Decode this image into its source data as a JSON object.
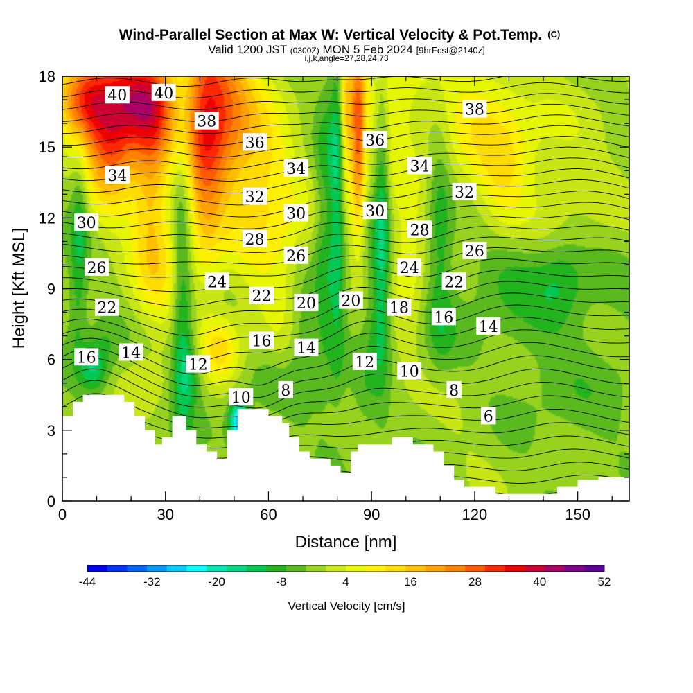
{
  "chart_data": {
    "type": "heatmap",
    "title": "Wind-Parallel Section at Max W: Vertical Velocity & Pot.Temp.",
    "title_units": "(C)",
    "subtitle_parts": {
      "valid": "Valid 1200 JST",
      "utc": "(0300Z)",
      "date": "MON 5 Feb 2024",
      "forecast": "[9hrFcst@2140z]"
    },
    "subtitle2": "i,j,k,angle=27,28,24,73",
    "xlabel": "Distance [nm]",
    "ylabel": "Height [Kft MSL]",
    "xlim": [
      0,
      165
    ],
    "ylim": [
      0,
      18
    ],
    "x_ticks": [
      0,
      30,
      60,
      90,
      120,
      150
    ],
    "y_ticks": [
      0,
      3,
      6,
      9,
      12,
      15,
      18
    ],
    "colorbar": {
      "label": "Vertical Velocity [cm/s]",
      "min": -44,
      "step": 4,
      "tick_labels": [
        "-44",
        "-32",
        "-20",
        "-8",
        "4",
        "16",
        "28",
        "40",
        "52"
      ],
      "colors": [
        "#0000ff",
        "#0033ff",
        "#0066ff",
        "#0099ff",
        "#00ccff",
        "#00ffff",
        "#00e6b3",
        "#00d980",
        "#00c853",
        "#22b41e",
        "#5ab91e",
        "#96d21e",
        "#c8e614",
        "#e6f500",
        "#fff000",
        "#ffdc00",
        "#ffbe00",
        "#ffa000",
        "#ff8200",
        "#ff5a00",
        "#ff2800",
        "#ee0000",
        "#cc0033",
        "#aa0066",
        "#7f0088",
        "#5a0096"
      ]
    },
    "terrain_kft": [
      [
        0,
        3.6
      ],
      [
        3,
        3.6
      ],
      [
        3,
        4.2
      ],
      [
        6,
        4.2
      ],
      [
        6,
        4.5
      ],
      [
        18,
        4.5
      ],
      [
        18,
        4.2
      ],
      [
        21,
        4.2
      ],
      [
        21,
        3.6
      ],
      [
        24,
        3.6
      ],
      [
        24,
        3.0
      ],
      [
        27,
        3.0
      ],
      [
        27,
        2.4
      ],
      [
        29,
        2.4
      ],
      [
        29,
        2.7
      ],
      [
        32,
        2.7
      ],
      [
        32,
        3.6
      ],
      [
        36,
        3.6
      ],
      [
        36,
        3.0
      ],
      [
        39,
        3.0
      ],
      [
        39,
        2.4
      ],
      [
        42,
        2.4
      ],
      [
        42,
        2.1
      ],
      [
        45,
        2.1
      ],
      [
        45,
        1.8
      ],
      [
        48,
        1.8
      ],
      [
        48,
        3.0
      ],
      [
        51,
        3.0
      ],
      [
        51,
        3.9
      ],
      [
        60,
        3.9
      ],
      [
        60,
        3.6
      ],
      [
        64,
        3.6
      ],
      [
        64,
        3.3
      ],
      [
        66,
        3.3
      ],
      [
        66,
        2.7
      ],
      [
        69,
        2.7
      ],
      [
        69,
        2.1
      ],
      [
        72,
        2.1
      ],
      [
        72,
        1.8
      ],
      [
        78,
        1.8
      ],
      [
        78,
        1.5
      ],
      [
        81,
        1.5
      ],
      [
        81,
        1.2
      ],
      [
        84,
        1.2
      ],
      [
        84,
        2.1
      ],
      [
        86,
        2.1
      ],
      [
        86,
        2.4
      ],
      [
        96,
        2.4
      ],
      [
        96,
        2.7
      ],
      [
        102,
        2.7
      ],
      [
        102,
        2.4
      ],
      [
        108,
        2.4
      ],
      [
        108,
        2.1
      ],
      [
        111,
        2.1
      ],
      [
        111,
        1.5
      ],
      [
        114,
        1.5
      ],
      [
        114,
        0.9
      ],
      [
        117,
        0.9
      ],
      [
        117,
        0.6
      ],
      [
        126,
        0.6
      ],
      [
        126,
        0.3
      ],
      [
        144,
        0.3
      ],
      [
        144,
        0.6
      ],
      [
        150,
        0.6
      ],
      [
        150,
        0.9
      ],
      [
        156,
        0.9
      ],
      [
        156,
        1.0
      ],
      [
        165,
        1.0
      ]
    ],
    "w_field": {
      "base": 2,
      "features": [
        {
          "x": 5,
          "y": 12,
          "sx": 1.8,
          "sy": 2.5,
          "a": -9
        },
        {
          "x": 4,
          "y": 8,
          "sx": 2,
          "sy": 1.6,
          "a": -6
        },
        {
          "x": 9,
          "y": 5.6,
          "sx": 3,
          "sy": 0.7,
          "a": -14
        },
        {
          "x": 13,
          "y": 6.8,
          "sx": 4,
          "sy": 0.8,
          "a": -5
        },
        {
          "x": 6,
          "y": 17,
          "sx": 5,
          "sy": 1.3,
          "a": 32
        },
        {
          "x": 14,
          "y": 15.5,
          "sx": 5,
          "sy": 2.2,
          "a": 30
        },
        {
          "x": 24,
          "y": 17,
          "sx": 7,
          "sy": 1.5,
          "a": 38
        },
        {
          "x": 26,
          "y": 13.5,
          "sx": 4,
          "sy": 2.5,
          "a": 18
        },
        {
          "x": 28,
          "y": 9.5,
          "sx": 6,
          "sy": 2,
          "a": 10
        },
        {
          "x": 35,
          "y": 9,
          "sx": 2.2,
          "sy": 4.5,
          "a": -14
        },
        {
          "x": 37,
          "y": 5.5,
          "sx": 3,
          "sy": 1,
          "a": -9
        },
        {
          "x": 41,
          "y": 15.5,
          "sx": 4,
          "sy": 4,
          "a": 22
        },
        {
          "x": 47,
          "y": 16.5,
          "sx": 6,
          "sy": 3,
          "a": 26
        },
        {
          "x": 46,
          "y": 6.5,
          "sx": 4,
          "sy": 1,
          "a": 14
        },
        {
          "x": 51,
          "y": 3.3,
          "sx": 1.8,
          "sy": 0.7,
          "a": -26
        },
        {
          "x": 53,
          "y": 2.6,
          "sx": 1.5,
          "sy": 0.8,
          "a": -22
        },
        {
          "x": 58,
          "y": 13.5,
          "sx": 6,
          "sy": 3.5,
          "a": 12
        },
        {
          "x": 70,
          "y": 7,
          "sx": 3,
          "sy": 2,
          "a": -8
        },
        {
          "x": 66,
          "y": 11,
          "sx": 6,
          "sy": 3,
          "a": 6
        },
        {
          "x": 76,
          "y": 11,
          "sx": 2,
          "sy": 5,
          "a": -8
        },
        {
          "x": 80,
          "y": 13,
          "sx": 1.7,
          "sy": 5.5,
          "a": -14
        },
        {
          "x": 86,
          "y": 15.5,
          "sx": 1.5,
          "sy": 3,
          "a": 30
        },
        {
          "x": 82.5,
          "y": 16,
          "sx": 1.2,
          "sy": 2.5,
          "a": 18
        },
        {
          "x": 93,
          "y": 13,
          "sx": 1.6,
          "sy": 4.5,
          "a": -14
        },
        {
          "x": 92,
          "y": 8,
          "sx": 3,
          "sy": 2,
          "a": -8
        },
        {
          "x": 95,
          "y": 17,
          "sx": 6,
          "sy": 2,
          "a": 12
        },
        {
          "x": 100,
          "y": 10,
          "sx": 4,
          "sy": 2.5,
          "a": 10
        },
        {
          "x": 110,
          "y": 12,
          "sx": 2.5,
          "sy": 2.8,
          "a": -9
        },
        {
          "x": 110,
          "y": 7.5,
          "sx": 3,
          "sy": 1.5,
          "a": -4
        },
        {
          "x": 120,
          "y": 16.5,
          "sx": 10,
          "sy": 2,
          "a": 10
        },
        {
          "x": 128,
          "y": 13.5,
          "sx": 5,
          "sy": 2,
          "a": 8
        },
        {
          "x": 130,
          "y": 10,
          "sx": 8,
          "sy": 1.3,
          "a": -6
        },
        {
          "x": 145,
          "y": 9.5,
          "sx": 5,
          "sy": 1.3,
          "a": -8
        },
        {
          "x": 140,
          "y": 8,
          "sx": 22,
          "sy": 2.5,
          "a": -4
        },
        {
          "x": 140,
          "y": 13.5,
          "sx": 15,
          "sy": 3,
          "a": 6
        },
        {
          "x": 150,
          "y": 4,
          "sx": 15,
          "sy": 2,
          "a": -2
        },
        {
          "x": 118,
          "y": 3.5,
          "sx": 8,
          "sy": 1.5,
          "a": 2
        },
        {
          "x": 88,
          "y": 4.2,
          "sx": 3,
          "sy": 1,
          "a": -4
        },
        {
          "x": 25,
          "y": 5,
          "sx": 4,
          "sy": 0.8,
          "a": 4
        },
        {
          "x": 60,
          "y": 5.2,
          "sx": 5,
          "sy": 0.8,
          "a": -3
        }
      ]
    },
    "theta_contours": {
      "levels": [
        5,
        41
      ],
      "step": 1,
      "base_c": 5.5,
      "lapse_per_kft": 2.0,
      "bumps": [
        {
          "x": 40,
          "y": 6,
          "sx": 10,
          "sy": 3,
          "a": 1.5
        },
        {
          "x": 58,
          "y": 4.5,
          "sx": 6,
          "sy": 1.5,
          "a": 1.8
        },
        {
          "x": 88,
          "y": 7.5,
          "sx": 8,
          "sy": 3,
          "a": -1.2
        },
        {
          "x": 8,
          "y": 5,
          "sx": 8,
          "sy": 2,
          "a": -1.5
        },
        {
          "x": 140,
          "y": 10,
          "sx": 25,
          "sy": 5,
          "a": -2.0
        },
        {
          "x": 78,
          "y": 15,
          "sx": 6,
          "sy": 3,
          "a": -0.8
        }
      ]
    },
    "theta_labels": [
      {
        "text": "40",
        "x": 16,
        "y": 17.2
      },
      {
        "text": "40",
        "x": 29.5,
        "y": 17.3
      },
      {
        "text": "38",
        "x": 42,
        "y": 16.1
      },
      {
        "text": "38",
        "x": 120,
        "y": 16.6
      },
      {
        "text": "36",
        "x": 56,
        "y": 15.2
      },
      {
        "text": "36",
        "x": 91,
        "y": 15.3
      },
      {
        "text": "34",
        "x": 16,
        "y": 13.8
      },
      {
        "text": "34",
        "x": 68,
        "y": 14.1
      },
      {
        "text": "34",
        "x": 104,
        "y": 14.2
      },
      {
        "text": "32",
        "x": 56,
        "y": 12.9
      },
      {
        "text": "32",
        "x": 117,
        "y": 13.1
      },
      {
        "text": "30",
        "x": 7,
        "y": 11.8
      },
      {
        "text": "30",
        "x": 68,
        "y": 12.2
      },
      {
        "text": "30",
        "x": 91,
        "y": 12.3
      },
      {
        "text": "28",
        "x": 56,
        "y": 11.1
      },
      {
        "text": "28",
        "x": 104,
        "y": 11.5
      },
      {
        "text": "26",
        "x": 10,
        "y": 9.9
      },
      {
        "text": "26",
        "x": 68,
        "y": 10.4
      },
      {
        "text": "26",
        "x": 120,
        "y": 10.6
      },
      {
        "text": "24",
        "x": 45,
        "y": 9.3
      },
      {
        "text": "24",
        "x": 101,
        "y": 9.9
      },
      {
        "text": "22",
        "x": 13,
        "y": 8.2
      },
      {
        "text": "22",
        "x": 58,
        "y": 8.7
      },
      {
        "text": "22",
        "x": 114,
        "y": 9.3
      },
      {
        "text": "20",
        "x": 71,
        "y": 8.4
      },
      {
        "text": "20",
        "x": 84,
        "y": 8.5
      },
      {
        "text": "18",
        "x": 98,
        "y": 8.2
      },
      {
        "text": "16",
        "x": 7,
        "y": 6.1
      },
      {
        "text": "16",
        "x": 58,
        "y": 6.8
      },
      {
        "text": "16",
        "x": 111,
        "y": 7.8
      },
      {
        "text": "14",
        "x": 20,
        "y": 6.3
      },
      {
        "text": "14",
        "x": 71,
        "y": 6.5
      },
      {
        "text": "14",
        "x": 124,
        "y": 7.4
      },
      {
        "text": "12",
        "x": 39.5,
        "y": 5.8
      },
      {
        "text": "12",
        "x": 88,
        "y": 5.9
      },
      {
        "text": "10",
        "x": 52,
        "y": 4.4
      },
      {
        "text": "10",
        "x": 101,
        "y": 5.5
      },
      {
        "text": "8",
        "x": 65,
        "y": 4.7
      },
      {
        "text": "8",
        "x": 114,
        "y": 4.7
      },
      {
        "text": "6",
        "x": 124,
        "y": 3.6
      }
    ]
  }
}
